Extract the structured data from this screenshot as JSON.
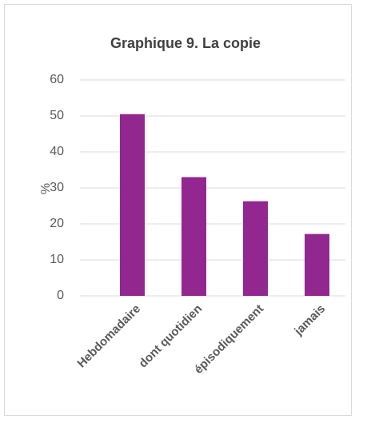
{
  "chart_data": {
    "type": "bar",
    "title": "Graphique 9. La copie",
    "y_label": "%",
    "categories": [
      "Hebdomadaire",
      "dont quotidien",
      "épisodiquement",
      "jamais"
    ],
    "values": [
      50.5,
      33,
      26.3,
      17.2
    ],
    "color": "#92278f",
    "ylim": [
      0,
      60
    ],
    "yticks": [
      0,
      10,
      20,
      30,
      40,
      50,
      60
    ],
    "grid": true
  }
}
